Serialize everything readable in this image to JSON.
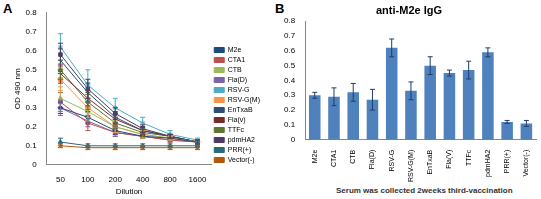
{
  "chart_data": [
    {
      "type": "line",
      "panel": "A",
      "x_label": "Dilution",
      "y_label": "OD 490 nm",
      "categories": [
        "50",
        "100",
        "200",
        "400",
        "800",
        "1600"
      ],
      "ylim": [
        0,
        0.8
      ],
      "yticks": [
        0,
        0.1,
        0.2,
        0.3,
        0.4,
        0.5,
        0.6,
        0.7,
        0.8
      ],
      "grid": false,
      "legend": "right",
      "series": [
        {
          "name": "M2e",
          "color": "#1f497d",
          "marker": "diamond",
          "values": [
            0.3,
            0.25,
            0.18,
            0.15,
            0.14,
            0.12
          ],
          "errors": [
            0.03,
            0.03,
            0.02,
            0.01,
            0.01,
            0.01
          ]
        },
        {
          "name": "CTA1",
          "color": "#c0504d",
          "marker": "square",
          "values": [
            0.33,
            0.22,
            0.17,
            0.15,
            0.13,
            0.12
          ],
          "errors": [
            0.05,
            0.04,
            0.02,
            0.01,
            0.01,
            0.01
          ]
        },
        {
          "name": "CTB",
          "color": "#9bbb59",
          "marker": "triangle",
          "values": [
            0.35,
            0.28,
            0.2,
            0.16,
            0.14,
            0.12
          ],
          "errors": [
            0.06,
            0.05,
            0.03,
            0.02,
            0.01,
            0.01
          ]
        },
        {
          "name": "Fla(D)",
          "color": "#8064a2",
          "marker": "cross",
          "values": [
            0.3,
            0.23,
            0.17,
            0.15,
            0.13,
            0.12
          ],
          "errors": [
            0.04,
            0.03,
            0.02,
            0.01,
            0.01,
            0.01
          ]
        },
        {
          "name": "RSV-G",
          "color": "#4bacc6",
          "marker": "star",
          "values": [
            0.62,
            0.42,
            0.3,
            0.22,
            0.16,
            0.13
          ],
          "errors": [
            0.07,
            0.08,
            0.05,
            0.03,
            0.02,
            0.01
          ]
        },
        {
          "name": "RSV-G(M)",
          "color": "#f79646",
          "marker": "circle",
          "values": [
            0.45,
            0.3,
            0.2,
            0.16,
            0.14,
            0.12
          ],
          "errors": [
            0.06,
            0.05,
            0.03,
            0.02,
            0.01,
            0.01
          ]
        },
        {
          "name": "EnTxaB",
          "color": "#2c4d75",
          "marker": "plus",
          "values": [
            0.55,
            0.38,
            0.25,
            0.18,
            0.15,
            0.12
          ],
          "errors": [
            0.06,
            0.05,
            0.03,
            0.02,
            0.01,
            0.01
          ]
        },
        {
          "name": "Fla(v)",
          "color": "#772c2a",
          "marker": "line",
          "values": [
            0.48,
            0.35,
            0.24,
            0.18,
            0.15,
            0.12
          ],
          "errors": [
            0.05,
            0.04,
            0.03,
            0.02,
            0.01,
            0.01
          ]
        },
        {
          "name": "TTFc",
          "color": "#5f7530",
          "marker": "diamond",
          "values": [
            0.5,
            0.33,
            0.22,
            0.17,
            0.15,
            0.12
          ],
          "errors": [
            0.05,
            0.04,
            0.03,
            0.02,
            0.01,
            0.01
          ]
        },
        {
          "name": "pdmHA2",
          "color": "#4d3b62",
          "marker": "square",
          "values": [
            0.58,
            0.4,
            0.27,
            0.19,
            0.15,
            0.12
          ],
          "errors": [
            0.06,
            0.05,
            0.03,
            0.02,
            0.01,
            0.01
          ]
        },
        {
          "name": "PRR(+)",
          "color": "#276a7c",
          "marker": "triangle",
          "values": [
            0.12,
            0.1,
            0.1,
            0.1,
            0.1,
            0.1
          ],
          "errors": [
            0.02,
            0.01,
            0.01,
            0.01,
            0.01,
            0.01
          ]
        },
        {
          "name": "Vector(-)",
          "color": "#b65708",
          "marker": "cross",
          "values": [
            0.1,
            0.09,
            0.09,
            0.09,
            0.09,
            0.09
          ],
          "errors": [
            0.01,
            0.01,
            0.01,
            0.01,
            0.01,
            0.01
          ]
        }
      ]
    },
    {
      "type": "bar",
      "panel": "B",
      "title": "anti-M2e IgG",
      "annotation": "Serum was collected 2weeks third-vaccination",
      "categories": [
        "M2e",
        "CTA1",
        "CTB",
        "Fla(D)",
        "RSV-G",
        "RSV-G(M)",
        "EnTxaB",
        "Fla(V)",
        "TTFc",
        "pdmHA2",
        "PRR(+)",
        "Vector(-)"
      ],
      "values": [
        0.3,
        0.29,
        0.32,
        0.27,
        0.62,
        0.33,
        0.5,
        0.45,
        0.47,
        0.59,
        0.12,
        0.11
      ],
      "errors": [
        0.02,
        0.06,
        0.06,
        0.07,
        0.06,
        0.06,
        0.06,
        0.02,
        0.06,
        0.03,
        0.01,
        0.02
      ],
      "color": "#4f81bd",
      "ylim": [
        0,
        0.8
      ],
      "yticks": [
        0,
        0.1,
        0.2,
        0.3,
        0.4,
        0.5,
        0.6,
        0.7,
        0.8
      ],
      "grid": false
    }
  ]
}
